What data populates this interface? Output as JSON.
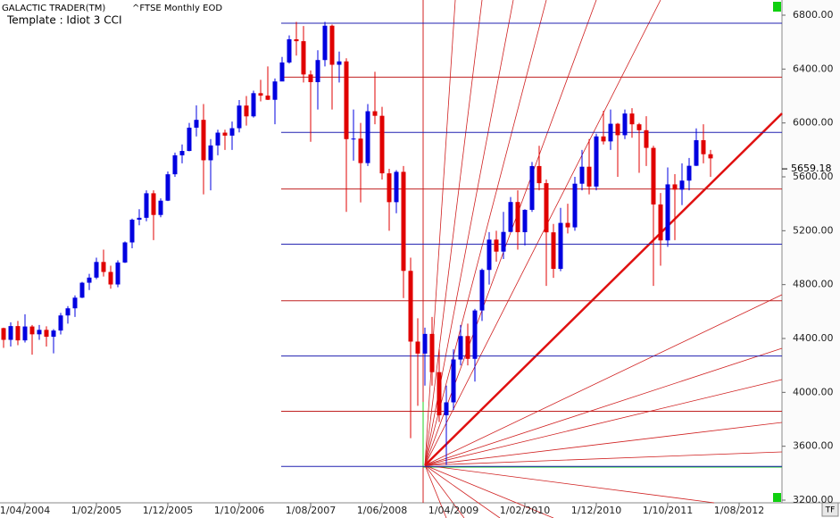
{
  "header": {
    "app": "GALACTIC TRADER(TM)",
    "symbol": "^FTSE Monthly EOD",
    "template": "Template : Idiot 3 CCI",
    "tf_button": "TF"
  },
  "chart_data": {
    "type": "candlestick",
    "up_color": "#0000e0",
    "down_color": "#e00000",
    "categories": [
      null,
      null,
      null,
      "1/04/2004",
      null,
      null,
      null,
      null,
      null,
      null,
      null,
      null,
      null,
      "1/02/2005",
      null,
      null,
      null,
      null,
      null,
      null,
      null,
      null,
      null,
      "1/12/2005",
      null,
      null,
      null,
      null,
      null,
      null,
      null,
      null,
      null,
      "1/10/2006",
      null,
      null,
      null,
      null,
      null,
      null,
      null,
      null,
      null,
      "1/08/2007",
      null,
      null,
      null,
      null,
      null,
      null,
      null,
      null,
      null,
      "1/06/2008",
      null,
      null,
      null,
      null,
      null,
      null,
      null,
      null,
      null,
      "1/04/2009",
      null,
      null,
      null,
      null,
      null,
      null,
      null,
      null,
      null,
      "1/02/2010",
      null,
      null,
      null,
      null,
      null,
      null,
      null,
      null,
      null,
      "1/12/2010",
      null,
      null,
      null,
      null,
      null,
      null,
      null,
      null,
      null,
      "1/10/2011",
      null,
      null,
      null,
      null,
      null,
      null,
      null,
      null,
      null,
      "1/08/2012"
    ],
    "candles": [
      [
        4477,
        4480,
        4330,
        4390
      ],
      [
        4390,
        4520,
        4340,
        4492
      ],
      [
        4492,
        4530,
        4350,
        4386
      ],
      [
        4386,
        4580,
        4370,
        4489
      ],
      [
        4489,
        4500,
        4280,
        4431
      ],
      [
        4431,
        4500,
        4390,
        4464
      ],
      [
        4464,
        4490,
        4340,
        4413
      ],
      [
        4413,
        4470,
        4290,
        4459
      ],
      [
        4459,
        4590,
        4430,
        4571
      ],
      [
        4571,
        4640,
        4510,
        4624
      ],
      [
        4624,
        4720,
        4560,
        4703
      ],
      [
        4703,
        4820,
        4700,
        4814
      ],
      [
        4814,
        4880,
        4760,
        4852
      ],
      [
        4852,
        5000,
        4840,
        4968
      ],
      [
        4968,
        5060,
        4860,
        4894
      ],
      [
        4894,
        4940,
        4770,
        4801
      ],
      [
        4801,
        4980,
        4780,
        4964
      ],
      [
        4964,
        5120,
        4960,
        5113
      ],
      [
        5113,
        5290,
        5070,
        5282
      ],
      [
        5282,
        5360,
        5240,
        5296
      ],
      [
        5296,
        5500,
        5270,
        5478
      ],
      [
        5478,
        5500,
        5130,
        5317
      ],
      [
        5317,
        5440,
        5300,
        5423
      ],
      [
        5423,
        5640,
        5420,
        5619
      ],
      [
        5619,
        5780,
        5600,
        5760
      ],
      [
        5760,
        5840,
        5700,
        5792
      ],
      [
        5792,
        6000,
        5790,
        5965
      ],
      [
        5965,
        6130,
        5900,
        6023
      ],
      [
        6023,
        6140,
        5470,
        5723
      ],
      [
        5723,
        5880,
        5500,
        5833
      ],
      [
        5833,
        5950,
        5760,
        5928
      ],
      [
        5928,
        5950,
        5800,
        5906
      ],
      [
        5906,
        6010,
        5800,
        5961
      ],
      [
        5961,
        6170,
        5930,
        6129
      ],
      [
        6129,
        6200,
        5980,
        6049
      ],
      [
        6049,
        6240,
        6040,
        6221
      ],
      [
        6221,
        6320,
        6160,
        6203
      ],
      [
        6203,
        6420,
        6170,
        6172
      ],
      [
        6172,
        6330,
        5990,
        6308
      ],
      [
        6308,
        6490,
        6310,
        6449
      ],
      [
        6449,
        6650,
        6440,
        6621
      ],
      [
        6621,
        6750,
        6500,
        6607
      ],
      [
        6607,
        6720,
        6300,
        6360
      ],
      [
        6360,
        6390,
        5860,
        6303
      ],
      [
        6303,
        6540,
        6100,
        6467
      ],
      [
        6467,
        6750,
        6420,
        6722
      ],
      [
        6722,
        6730,
        6100,
        6432
      ],
      [
        6432,
        6530,
        6300,
        6457
      ],
      [
        6457,
        6480,
        5340,
        5880
      ],
      [
        5880,
        6100,
        5720,
        5884
      ],
      [
        5884,
        6000,
        5410,
        5702
      ],
      [
        5702,
        6140,
        5680,
        6087
      ],
      [
        6087,
        6380,
        5990,
        6053
      ],
      [
        6053,
        6120,
        5580,
        5626
      ],
      [
        5626,
        5660,
        5200,
        5412
      ],
      [
        5412,
        5650,
        5330,
        5637
      ],
      [
        5637,
        5680,
        4700,
        4902
      ],
      [
        4902,
        5000,
        3660,
        4377
      ],
      [
        4377,
        4550,
        3900,
        4288
      ],
      [
        4288,
        4480,
        4050,
        4434
      ],
      [
        4434,
        4560,
        4050,
        4150
      ],
      [
        4150,
        4320,
        3780,
        3830
      ],
      [
        3830,
        4050,
        3460,
        3926
      ],
      [
        3926,
        4320,
        3870,
        4244
      ],
      [
        4244,
        4500,
        4200,
        4418
      ],
      [
        4418,
        4510,
        4200,
        4249
      ],
      [
        4249,
        4620,
        4080,
        4608
      ],
      [
        4608,
        4920,
        4530,
        4909
      ],
      [
        4909,
        5190,
        4800,
        5134
      ],
      [
        5134,
        5200,
        4970,
        5045
      ],
      [
        5045,
        5340,
        4990,
        5191
      ],
      [
        5191,
        5450,
        5190,
        5413
      ],
      [
        5413,
        5500,
        5060,
        5189
      ],
      [
        5189,
        5360,
        5090,
        5355
      ],
      [
        5355,
        5710,
        5340,
        5680
      ],
      [
        5680,
        5830,
        5500,
        5553
      ],
      [
        5553,
        5580,
        4790,
        5188
      ],
      [
        5188,
        5250,
        4850,
        4917
      ],
      [
        4917,
        5370,
        4900,
        5258
      ],
      [
        5258,
        5400,
        5180,
        5225
      ],
      [
        5225,
        5600,
        5200,
        5549
      ],
      [
        5549,
        5800,
        5500,
        5675
      ],
      [
        5675,
        5880,
        5470,
        5528
      ],
      [
        5528,
        5920,
        5500,
        5900
      ],
      [
        5900,
        6090,
        5840,
        5863
      ],
      [
        5863,
        6100,
        5800,
        5994
      ],
      [
        5994,
        6000,
        5600,
        5909
      ],
      [
        5909,
        6100,
        5880,
        6070
      ],
      [
        6070,
        6110,
        5890,
        5990
      ],
      [
        5990,
        6000,
        5630,
        5946
      ],
      [
        5946,
        6050,
        5680,
        5815
      ],
      [
        5815,
        5830,
        4790,
        5395
      ],
      [
        5395,
        5480,
        4940,
        5128
      ],
      [
        5128,
        5670,
        5080,
        5544
      ],
      [
        5544,
        5620,
        5130,
        5505
      ],
      [
        5505,
        5700,
        5390,
        5572
      ],
      [
        5572,
        5740,
        5500,
        5682
      ],
      [
        5682,
        5960,
        5680,
        5872
      ],
      [
        5872,
        5990,
        5700,
        5768
      ],
      [
        5768,
        5800,
        5600,
        5737
      ],
      null,
      null,
      null,
      null
    ],
    "levels": [
      {
        "value": 6740,
        "color": "#2020b0"
      },
      {
        "value": 6340,
        "color": "#c02020"
      },
      {
        "value": 5930,
        "color": "#2020b0"
      },
      {
        "value": 5510,
        "color": "#c02020"
      },
      {
        "value": 5100,
        "color": "#2020b0"
      },
      {
        "value": 4680,
        "color": "#c02020"
      },
      {
        "value": 4270,
        "color": "#2020b0"
      },
      {
        "value": 3860,
        "color": "#c02020"
      },
      {
        "value": 3450,
        "color": "#2020b0"
      }
    ],
    "last_price": 5659.18,
    "ylim": [
      3200,
      6800
    ],
    "yticks": [
      {
        "value": 3200,
        "label": "3200.00"
      },
      {
        "value": 3600,
        "label": "3600.00"
      },
      {
        "value": 4000,
        "label": "4000.00"
      },
      {
        "value": 4400,
        "label": "4400.00"
      },
      {
        "value": 4800,
        "label": "4800.00"
      },
      {
        "value": 5200,
        "label": "5200.00"
      },
      {
        "value": 5600,
        "label": "5600.00"
      },
      {
        "value": 6000,
        "label": "6000.00"
      },
      {
        "value": 6400,
        "label": "6400.00"
      },
      {
        "value": 6800,
        "label": "6800.00"
      }
    ]
  }
}
